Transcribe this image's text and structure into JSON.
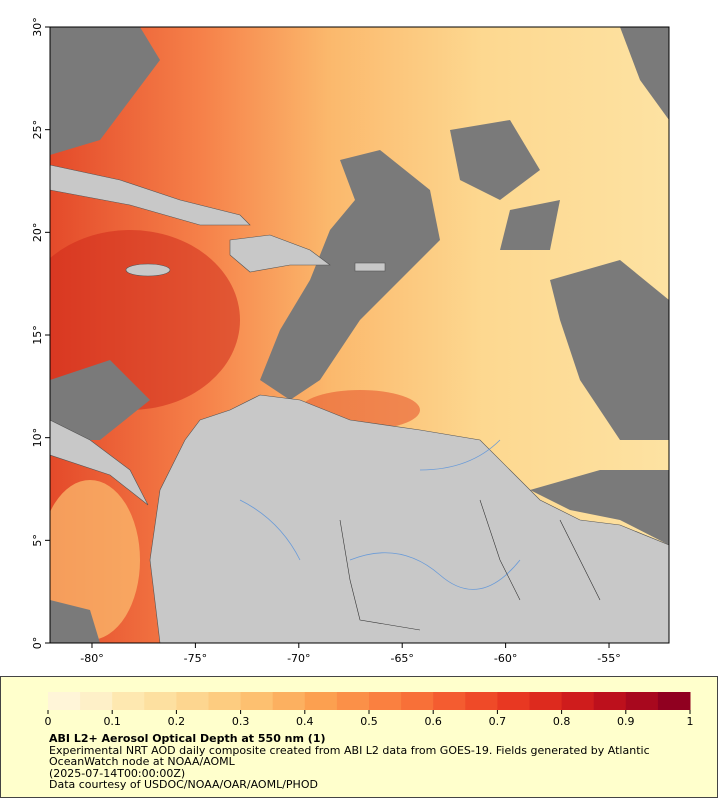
{
  "map": {
    "xlim": [
      -82.03,
      -52.1
    ],
    "ylim": [
      0,
      30
    ],
    "xticks": [
      {
        "value": -80,
        "label": "-80°"
      },
      {
        "value": -75,
        "label": "-75°"
      },
      {
        "value": -70,
        "label": "-70°"
      },
      {
        "value": -65,
        "label": "-65°"
      },
      {
        "value": -60,
        "label": "-60°"
      },
      {
        "value": -55,
        "label": "-55°"
      }
    ],
    "yticks": [
      {
        "value": 0,
        "label": "0°"
      },
      {
        "value": 5,
        "label": "5°"
      },
      {
        "value": 10,
        "label": "10°"
      },
      {
        "value": 15,
        "label": "15°"
      },
      {
        "value": 20,
        "label": "20°"
      },
      {
        "value": 25,
        "label": "25°"
      },
      {
        "value": 30,
        "label": "30°"
      }
    ]
  },
  "colorbar": {
    "range": [
      0,
      1
    ],
    "ticks": [
      0,
      0.1,
      0.2,
      0.3,
      0.4,
      0.5,
      0.6,
      0.7,
      0.8,
      0.9,
      1
    ],
    "colors": [
      "#fff5d8",
      "#fef0c8",
      "#fee8b0",
      "#fde0a0",
      "#fdd690",
      "#fdcc80",
      "#fdc070",
      "#fcb060",
      "#fca050",
      "#fb9048",
      "#fa8040",
      "#f87038",
      "#f45c30",
      "#ef4a28",
      "#e83822",
      "#dd2a1e",
      "#cf1c1c",
      "#bd101c",
      "#a8081e",
      "#900020"
    ]
  },
  "legend": {
    "title": "ABI L2+ Aerosol Optical Depth at 550 nm (1)",
    "description": "Experimental NRT AOD daily composite created from ABI L2 data from GOES-19. Fields generated by Atlantic OceanWatch node at NOAA/AOML",
    "date": "(2025-07-14T00:00:00Z)",
    "credit": "Data courtesy of USDOC/NOAA/OAR/AOML/PHOD"
  }
}
